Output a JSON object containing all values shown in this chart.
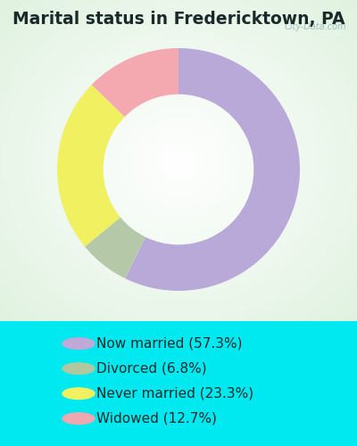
{
  "title": "Marital status in Fredericktown, PA",
  "categories": [
    "Now married (57.3%)",
    "Divorced (6.8%)",
    "Never married (23.3%)",
    "Widowed (12.7%)"
  ],
  "values": [
    57.3,
    6.8,
    23.3,
    12.7
  ],
  "colors": [
    "#b8a9d9",
    "#b5c9a8",
    "#f0f060",
    "#f4a9b0"
  ],
  "background_color_outer": "#00e8f0",
  "title_color": "#1a2a2a",
  "title_fontsize": 13.5,
  "legend_fontsize": 11,
  "watermark": "City-Data.com",
  "donut_width": 0.38,
  "start_angle": 90,
  "chart_bg_left": "#c8e8d0",
  "chart_bg_right": "#e8f4f0"
}
